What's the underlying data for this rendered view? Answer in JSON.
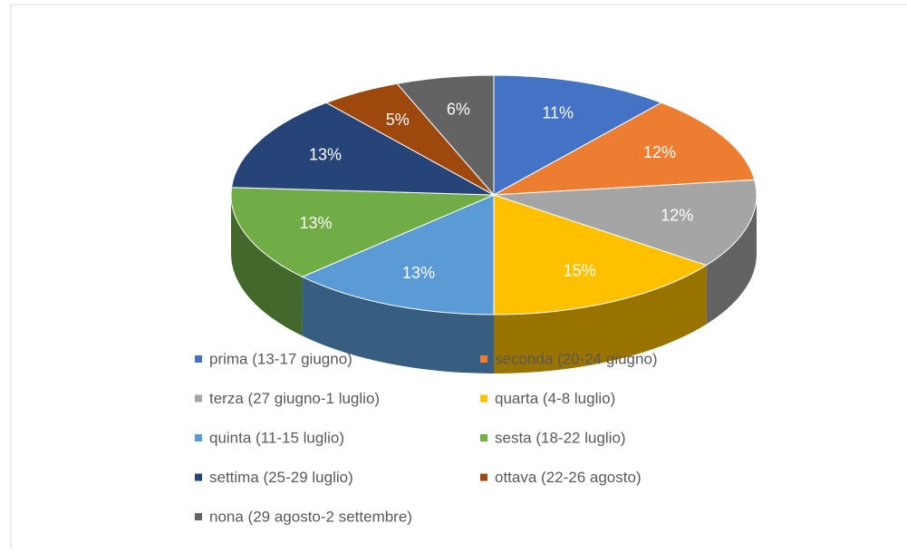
{
  "chart_data": {
    "type": "pie3d",
    "categories": [
      "prima (13-17 giugno)",
      "seconda (20-24 giugno)",
      "terza (27 giugno-1 luglio)",
      "quarta (4-8 luglio)",
      "quinta (11-15 luglio)",
      "sesta (18-22 luglio)",
      "settima (25-29 luglio)",
      "ottava (22-26 agosto)",
      "nona (29 agosto-2 settembre)"
    ],
    "values": [
      11,
      12,
      12,
      15,
      13,
      13,
      13,
      5,
      6
    ],
    "value_labels": [
      "11%",
      "12%",
      "12%",
      "15%",
      "13%",
      "13%",
      "13%",
      "5%",
      "6%"
    ],
    "colors": [
      "#4472c4",
      "#ed7d31",
      "#a5a5a5",
      "#ffc000",
      "#5b9bd5",
      "#70ad47",
      "#264478",
      "#9e480e",
      "#636363"
    ],
    "legend": "bottom"
  }
}
